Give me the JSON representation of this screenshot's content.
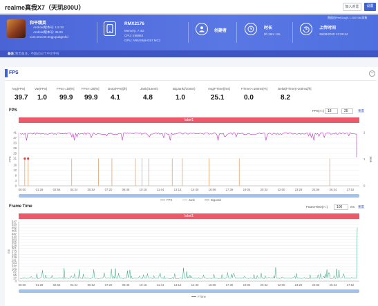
{
  "header": {
    "title": "realme真我X7（天玑800U）",
    "btn_add": "加入对比",
    "btn_set": "设置"
  },
  "game": {
    "name": "和平精英",
    "android_ver": "Android版本号: 1.8.10",
    "android_ver2": "Android版本号: 36.00",
    "package": "com.tencent.tmgp.pubgmhd"
  },
  "device": {
    "model": "RMX2176",
    "memory": "Memory: 7.4G",
    "cpu": "CPU: mt6853",
    "gpu": "GPU: ARM Mali-G57 MC3"
  },
  "creator": {
    "label": "创建者"
  },
  "duration": {
    "label": "时长",
    "value": "0h 29m 13s"
  },
  "upload": {
    "label": "上传时间",
    "value": "26/08/2020 12:28:44"
  },
  "perfdog": "数据由PerfDog(9.1.200708)采集",
  "note": {
    "label": "备注:",
    "text": "暂无备注，不超过50个中文字符"
  },
  "section": {
    "title": "FPS",
    "collapse": "−"
  },
  "stats": [
    {
      "label": "Avg(FPS)",
      "value": "39.7"
    },
    {
      "label": "Var(FPS)",
      "value": "1.0"
    },
    {
      "label": "FPS>=18[%]",
      "value": "99.9"
    },
    {
      "label": "FPS>=25[%]",
      "value": "99.9"
    },
    {
      "label": "Drop(FPS)[/h]",
      "value": "4.1"
    },
    {
      "label": "Jank(/10min)",
      "value": "4.8"
    },
    {
      "label": "BigJank(/10min)",
      "value": "1.0"
    },
    {
      "label": "Avg(FTime)[ms]",
      "value": "25.1"
    },
    {
      "label": "FTime>=100ms[%]",
      "value": "0.0"
    },
    {
      "label": "Delta(FTime)>100ms[/h]",
      "value": "8.2"
    }
  ],
  "fps_chart": {
    "title": "FPS",
    "filter_label": "FPS(>=)",
    "v1": "18",
    "v2": "25",
    "reset": "重置",
    "band": "label1",
    "ylabel_left": "FPS",
    "ylabel_right": "Jank",
    "legend": [
      "FPS",
      "Jank",
      "BigJank"
    ]
  },
  "ft_chart": {
    "title": "Frame Time",
    "filter_label": "FrameTime(>=)",
    "v1": "100",
    "unit": "ms",
    "reset": "重置",
    "band": "label1",
    "ylabel": "ms",
    "legend": [
      "FTime"
    ]
  },
  "colors": {
    "fps": "#c34bc4",
    "jank": "#e8a06a",
    "bigjank": "#d64040",
    "ftime": "#2fa37a",
    "band": "#ec5a6a",
    "accent": "#3f63d8"
  },
  "chart_data": [
    {
      "type": "line",
      "title": "FPS",
      "ylabel": "FPS",
      "y2label": "Jank",
      "x": [
        "00:00",
        "01:28",
        "02:56",
        "04:24",
        "05:52",
        "07:20",
        "08:48",
        "10:16",
        "11:44",
        "13:12",
        "14:40",
        "16:08",
        "17:36",
        "19:04",
        "20:32",
        "22:00",
        "23:28",
        "24:56",
        "26:24",
        "27:52"
      ],
      "ylim": [
        0,
        41
      ],
      "yticks": [
        0,
        4,
        8,
        12,
        16,
        21,
        25,
        29,
        33,
        37,
        41
      ],
      "y2lim": [
        0,
        2
      ],
      "y2ticks": [
        0,
        1,
        2
      ],
      "series": [
        {
          "name": "FPS",
          "values": [
            40,
            40,
            40,
            40,
            40,
            40,
            40,
            40,
            40,
            40,
            40,
            40,
            40,
            40,
            40,
            40,
            40,
            40,
            40,
            40
          ]
        },
        {
          "name": "Jank",
          "values": [
            1,
            1,
            1,
            0,
            1,
            1,
            1,
            0,
            1,
            1,
            0,
            0,
            0,
            0,
            0,
            0,
            0,
            0,
            0,
            1
          ]
        },
        {
          "name": "BigJank",
          "values": [
            1,
            1,
            0,
            0,
            0,
            0,
            0,
            0,
            0,
            0,
            0,
            0,
            0,
            0,
            0,
            0,
            0,
            0,
            0,
            0
          ]
        }
      ],
      "legend_position": "bottom"
    },
    {
      "type": "line",
      "title": "Frame Time",
      "ylabel": "ms",
      "x": [
        "00:00",
        "01:28",
        "02:56",
        "04:24",
        "05:52",
        "07:20",
        "08:48",
        "10:16",
        "11:44",
        "13:12",
        "14:40",
        "16:08",
        "17:36",
        "19:04",
        "20:32",
        "22:00",
        "23:28",
        "24:56",
        "26:24",
        "27:52"
      ],
      "ylim": [
        0,
        547
      ],
      "yticks": [
        0,
        27,
        55,
        82,
        109,
        137,
        164,
        191,
        219,
        246,
        273,
        301,
        328,
        355,
        383,
        410,
        437,
        465,
        492,
        520,
        547
      ],
      "series": [
        {
          "name": "FTime",
          "values": [
            25,
            27,
            25,
            26,
            25,
            25,
            26,
            25,
            25,
            26,
            25,
            25,
            25,
            26,
            25,
            25,
            25,
            26,
            25,
            492
          ]
        }
      ],
      "legend_position": "bottom"
    }
  ]
}
